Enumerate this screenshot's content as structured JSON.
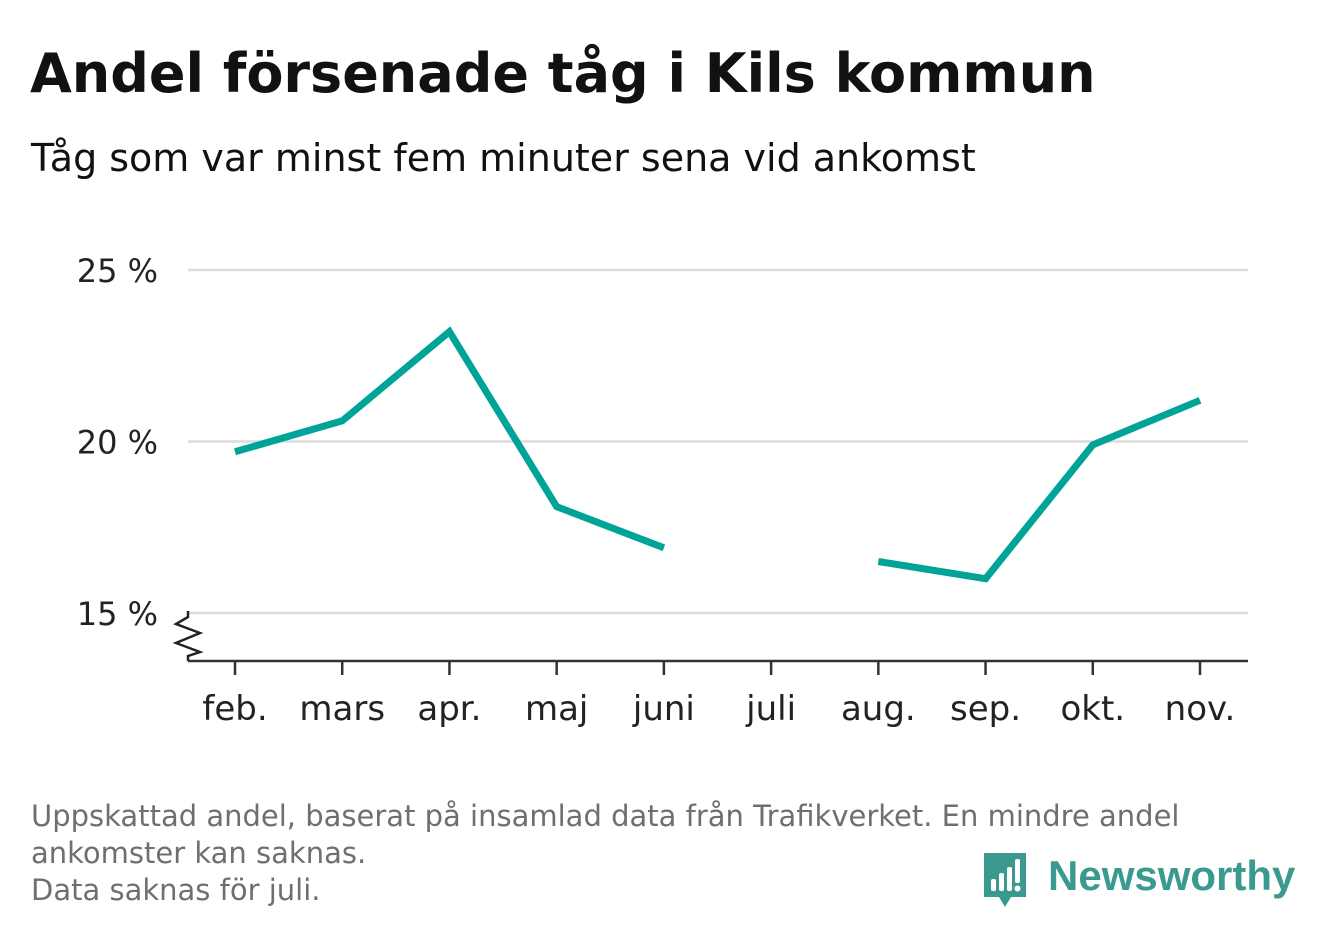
{
  "title": "Andel försenade tåg i Kils kommun",
  "subtitle": "Tåg som var minst fem minuter sena vid ankomst",
  "notes": {
    "line1": "Uppskattad andel, baserat på insamlad data från Trafikverket. En mindre andel",
    "line2": "ankomster kan saknas.",
    "line3": "Data saknas för juli."
  },
  "brand": {
    "name": "Newsworthy",
    "icon": "bar-chart-speech-bubble-icon",
    "color": "#3a9a8f"
  },
  "chart_data": {
    "type": "line",
    "categories": [
      "feb.",
      "mars",
      "apr.",
      "maj",
      "juni",
      "juli",
      "aug.",
      "sep.",
      "okt.",
      "nov."
    ],
    "series": [
      {
        "values": [
          19.7,
          20.6,
          23.2,
          18.1,
          16.9,
          null,
          16.5,
          16.0,
          19.9,
          21.2
        ],
        "color": "#00a398"
      }
    ],
    "y_ticks": [
      15,
      20,
      25
    ],
    "y_tick_labels": [
      "15 %",
      "20 %",
      "25 %"
    ],
    "ylim": [
      15,
      25
    ],
    "axis_break": true,
    "grid": true,
    "missing": [
      "juli"
    ],
    "xlabel": "",
    "ylabel": ""
  }
}
